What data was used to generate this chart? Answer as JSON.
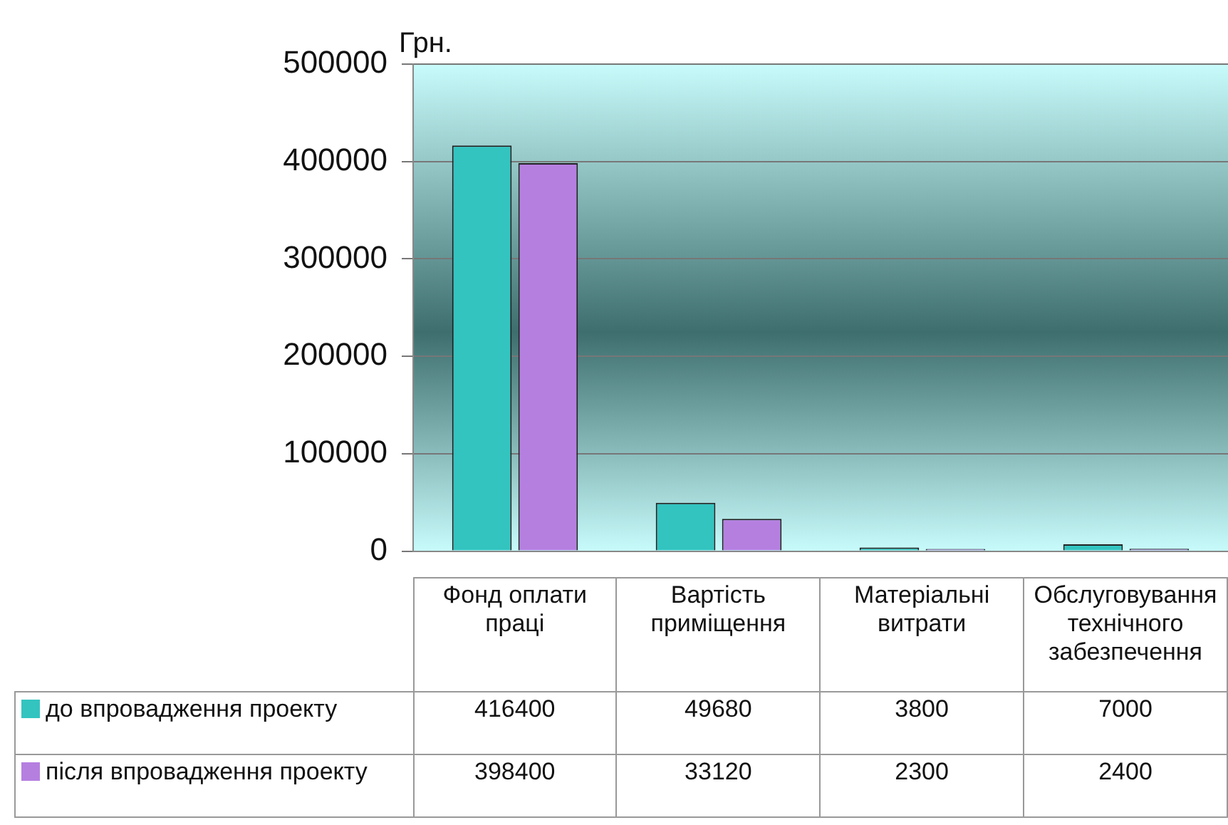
{
  "chart_data": {
    "type": "bar",
    "ylabel": "Грн.",
    "categories": [
      "Фонд оплати праці",
      "Вартість приміщення",
      "Матеріальні витрати",
      "Обслуговування технічного забезпечення"
    ],
    "series": [
      {
        "name": "до впровадження проекту",
        "color": "#33c4c0",
        "values": [
          416400,
          49680,
          3800,
          7000
        ]
      },
      {
        "name": "після впровадження проекту",
        "color": "#b57fe0",
        "values": [
          398400,
          33120,
          2300,
          2400
        ]
      }
    ],
    "ylim": [
      0,
      500000
    ],
    "yticks": [
      0,
      100000,
      200000,
      300000,
      400000,
      500000
    ],
    "grid": "y",
    "legend": "bottom left",
    "data_labels": true
  }
}
